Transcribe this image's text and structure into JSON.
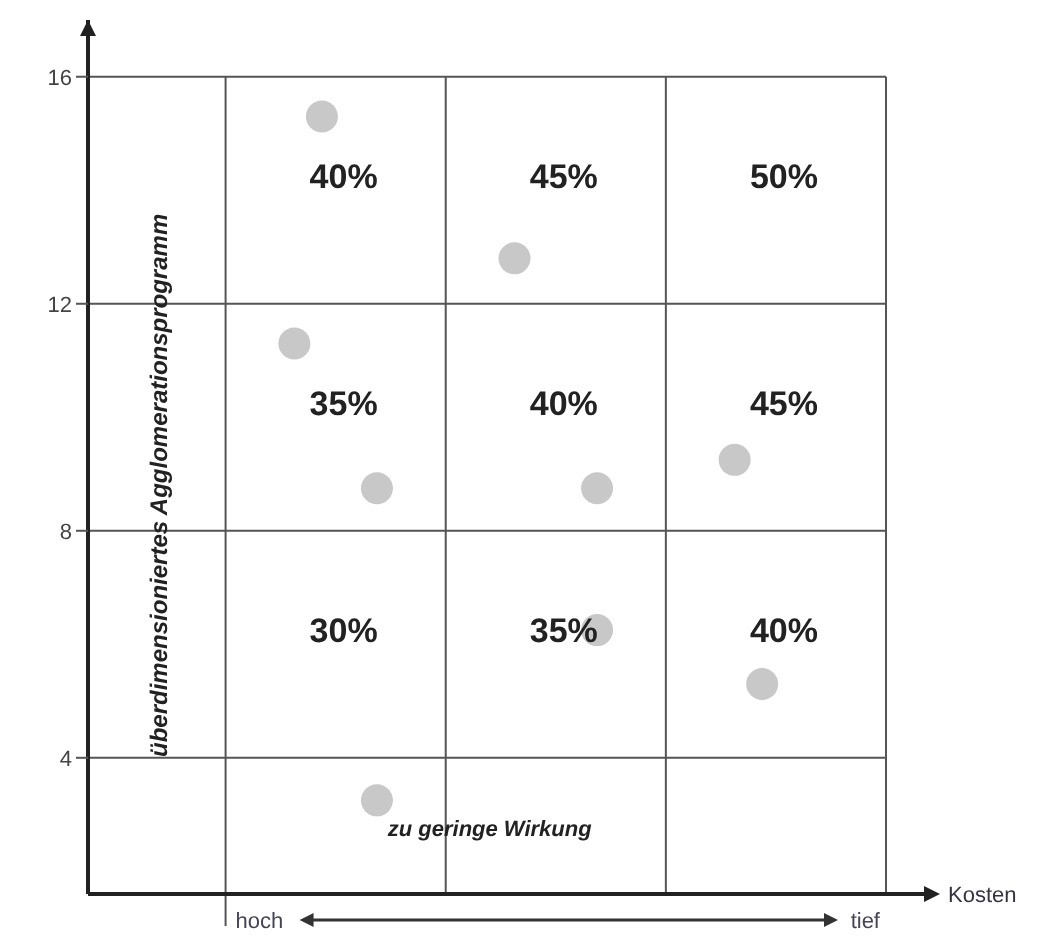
{
  "chart_data": {
    "type": "scatter",
    "xlabel": "Kosten",
    "ylabel": "überdimensioniertes Agglomerationsprogramm",
    "categories": [
      null,
      null,
      null,
      null,
      null,
      null,
      null,
      null,
      null,
      null,
      null,
      null,
      null,
      null,
      null,
      null,
      null,
      null,
      null,
      null,
      null,
      null,
      null,
      null,
      null,
      null,
      null,
      null,
      null
    ],
    "series": [
      {
        "color": "#c8c8c8",
        "values": [
          null,
          null,
          null,
          null,
          null,
          null,
          null,
          11.3,
          15.3,
          null,
          8.75,
          null,
          null,
          null,
          null,
          12.8,
          null,
          null,
          8.75,
          null,
          null,
          null,
          null,
          9.25,
          5.3,
          null,
          null,
          null,
          null
        ]
      },
      {
        "color": "#c8c8c8",
        "values": [
          null,
          null,
          null,
          null,
          null,
          null,
          null,
          null,
          null,
          null,
          3.25,
          null,
          null,
          null,
          null,
          null,
          null,
          null,
          6.25,
          null,
          null,
          null,
          null,
          null,
          null,
          null,
          null,
          null,
          null
        ]
      }
    ],
    "ylim": [
      1.6,
      17
    ],
    "yticks": [
      4,
      8,
      12,
      16
    ],
    "grid": true,
    "tick_labels": "y",
    "marker": "circle",
    "annotations": [
      "40%",
      "45%",
      "50%",
      "35%",
      "40%",
      "45%",
      "30%",
      "35%",
      "40%",
      "zu geringe Wirkung",
      "hoch",
      "tief"
    ]
  }
}
